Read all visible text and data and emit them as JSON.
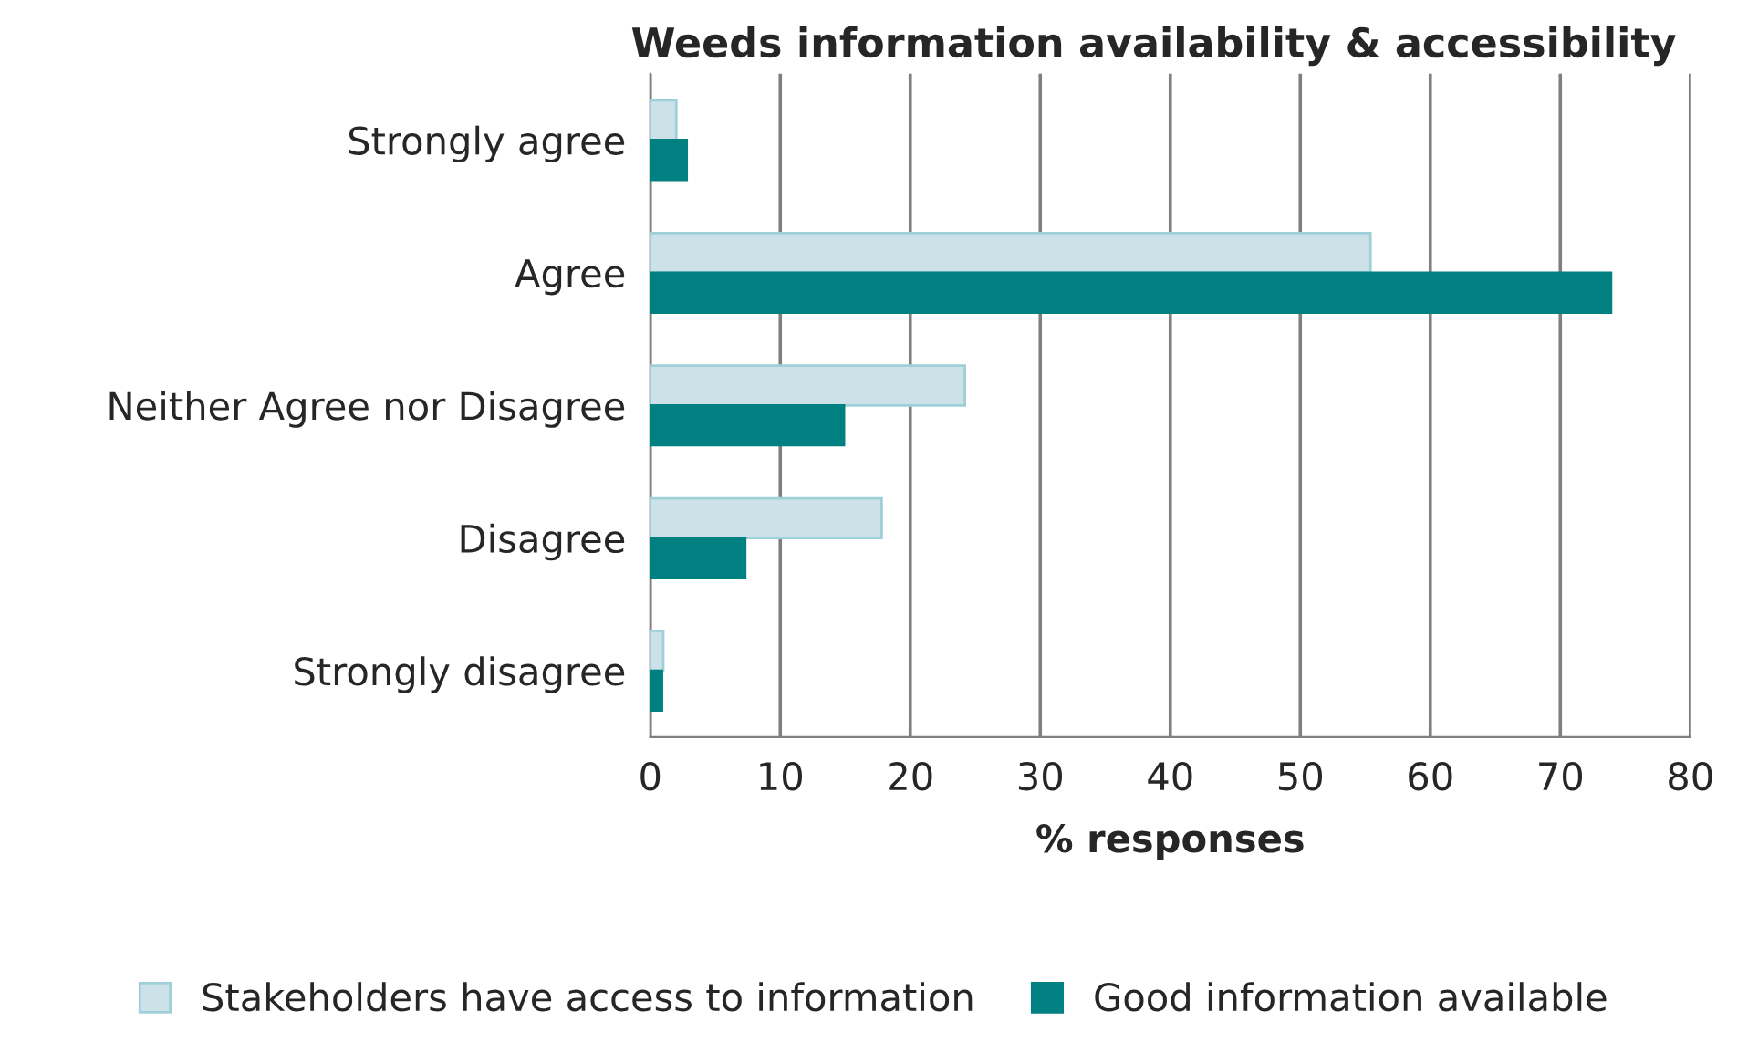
{
  "chart_data": {
    "type": "bar",
    "orientation": "horizontal",
    "title": "Weeds information availability & accessibility",
    "xlabel": "% responses",
    "categories": [
      "Strongly agree",
      "Agree",
      "Neither Agree nor Disagree",
      "Disagree",
      "Strongly disagree"
    ],
    "series": [
      {
        "name": "Stakeholders have access to information",
        "color": "#cde2e8",
        "values": [
          2.0,
          55.4,
          24.2,
          17.8,
          1.0
        ]
      },
      {
        "name": "Good information available",
        "color": "#008080",
        "values": [
          2.8,
          73.9,
          14.9,
          7.3,
          0.9
        ]
      }
    ],
    "xlim": [
      0,
      80
    ],
    "xticks": [
      0,
      10,
      20,
      30,
      40,
      50,
      60,
      70,
      80
    ],
    "grid": "x",
    "legend": "bottom"
  }
}
